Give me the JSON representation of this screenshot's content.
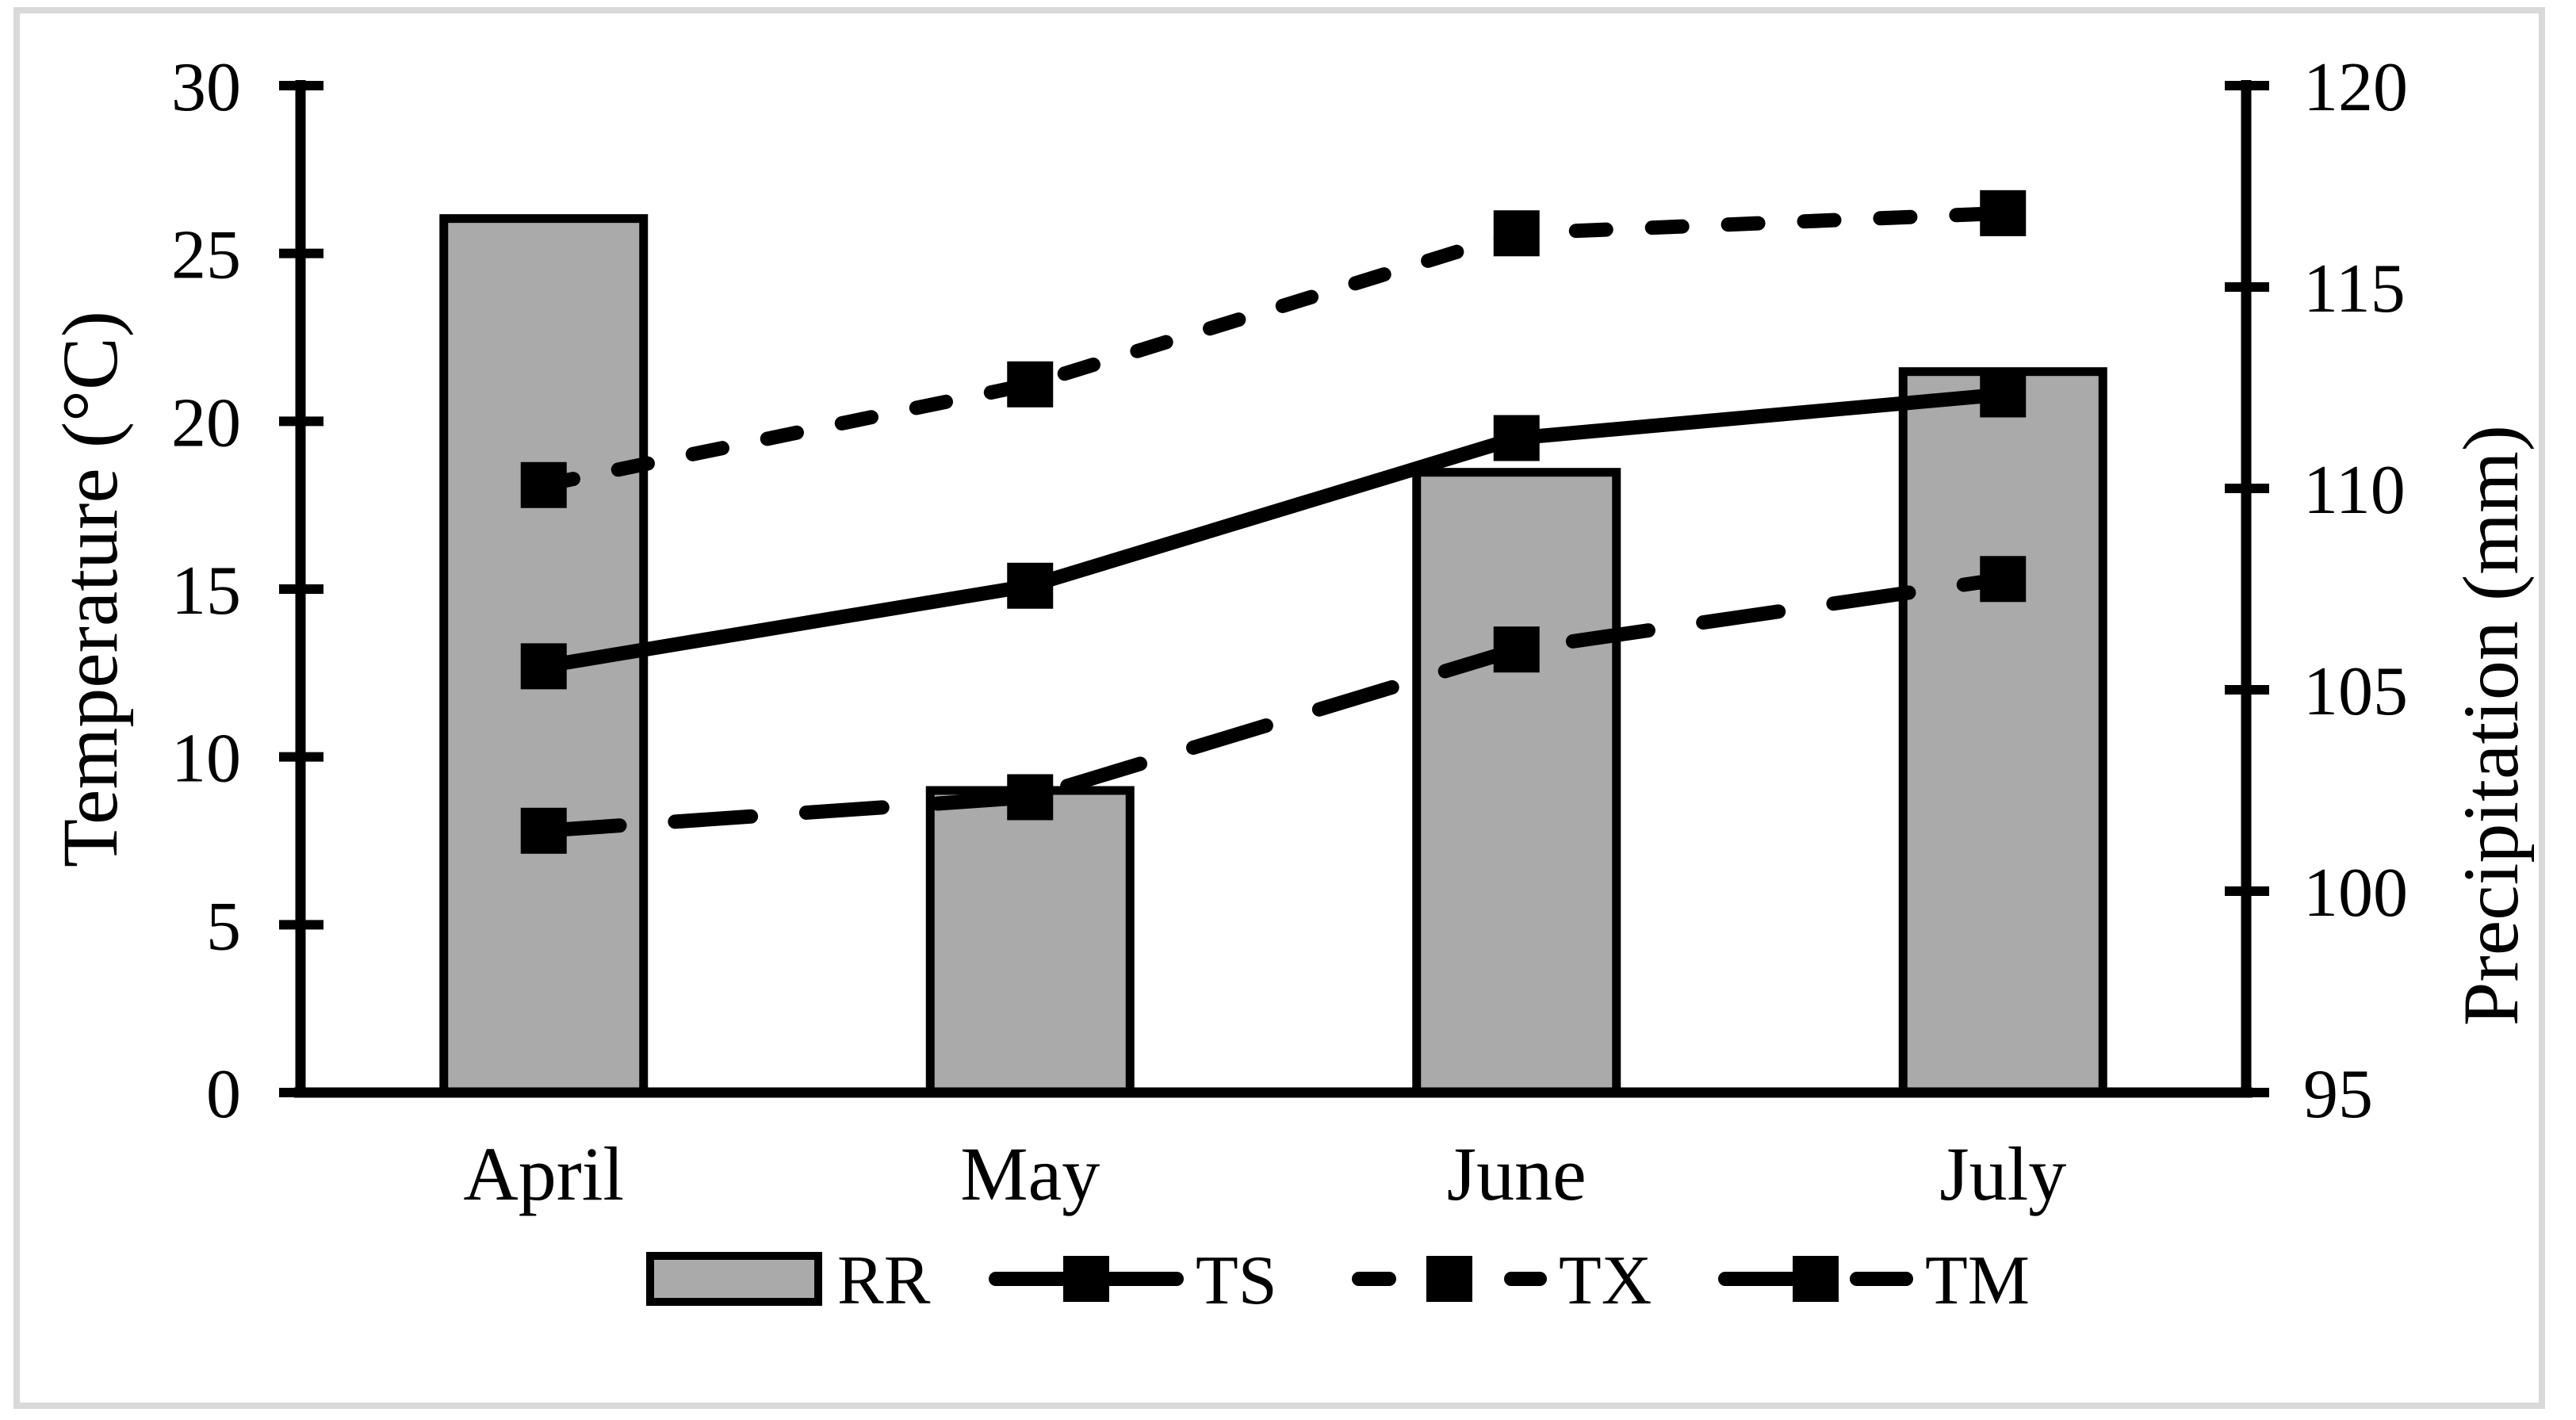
{
  "figure": {
    "background": "#ffffff",
    "frame_color": "#d9d9d9"
  },
  "chart_data": {
    "type": "combo-bar-line",
    "categories": [
      "April",
      "May",
      "June",
      "July"
    ],
    "bar_series": {
      "name": "RR",
      "axis": "right",
      "unit": "mm",
      "values": [
        116.7,
        102.5,
        110.4,
        112.9
      ],
      "fill": "#aaaaaa",
      "stroke": "#000000"
    },
    "line_series": [
      {
        "name": "TS",
        "axis": "left",
        "unit": "°C",
        "style": "solid",
        "marker": "square",
        "color": "#000000",
        "values": [
          12.7,
          15.1,
          19.5,
          20.8
        ]
      },
      {
        "name": "TX",
        "axis": "left",
        "unit": "°C",
        "style": "dashed",
        "marker": "square",
        "color": "#000000",
        "values": [
          18.1,
          21.1,
          25.6,
          26.2
        ]
      },
      {
        "name": "TM",
        "axis": "left",
        "unit": "°C",
        "style": "long-dash",
        "marker": "square",
        "color": "#000000",
        "values": [
          7.8,
          8.8,
          13.2,
          15.3
        ]
      }
    ],
    "left_axis": {
      "label": "Temperature (°C)",
      "min": 0,
      "max": 30,
      "step": 5,
      "ticks": [
        0,
        5,
        10,
        15,
        20,
        25,
        30
      ]
    },
    "right_axis": {
      "label": "Precipitation (mm)",
      "min": 95,
      "max": 120,
      "step": 5,
      "ticks": [
        95,
        100,
        105,
        110,
        115,
        120
      ]
    },
    "legend": [
      "RR",
      "TS",
      "TX",
      "TM"
    ],
    "legend_position": "bottom",
    "grid": false,
    "ink_color": "#000000"
  }
}
